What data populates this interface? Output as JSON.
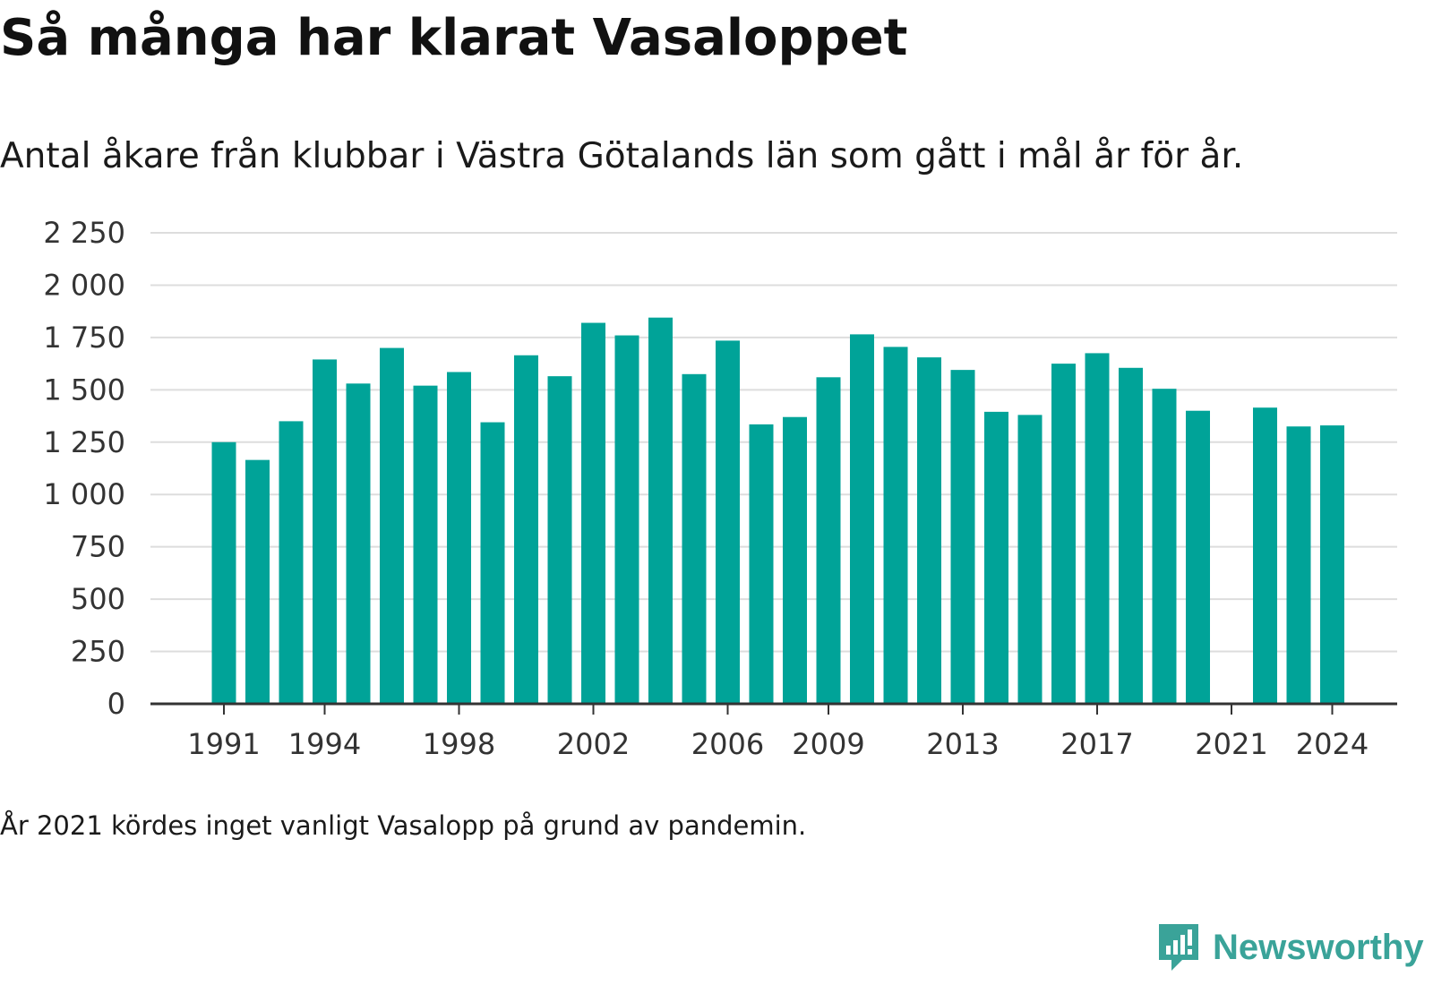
{
  "header": {
    "title": "Så många har klarat Vasaloppet",
    "subtitle": "Antal åkare från klubbar i Västra Götalands län som gått i mål år för år."
  },
  "footer": {
    "note": "År 2021 kördes inget vanligt Vasalopp på grund av pandemin.",
    "brand": "Newsworthy"
  },
  "colors": {
    "bar": "#00a398",
    "grid": "#dddddd",
    "axis": "#333333",
    "brand": "#3aa399"
  },
  "chart_data": {
    "type": "bar",
    "categories": [
      "1991",
      "1992",
      "1993",
      "1994",
      "1995",
      "1996",
      "1997",
      "1998",
      "1999",
      "2000",
      "2001",
      "2002",
      "2003",
      "2004",
      "2005",
      "2006",
      "2007",
      "2008",
      "2009",
      "2010",
      "2011",
      "2012",
      "2013",
      "2014",
      "2015",
      "2016",
      "2017",
      "2018",
      "2019",
      "2020",
      "2021",
      "2022",
      "2023",
      "2024"
    ],
    "values": [
      1250,
      1165,
      1350,
      1645,
      1530,
      1700,
      1520,
      1585,
      1345,
      1665,
      1565,
      1820,
      1760,
      1845,
      1575,
      1735,
      1335,
      1370,
      1560,
      1765,
      1705,
      1655,
      1595,
      1395,
      1380,
      1625,
      1675,
      1605,
      1505,
      1400,
      null,
      1415,
      1325,
      1330
    ],
    "x_tick_labels": [
      "1991",
      "1994",
      "1998",
      "2002",
      "2006",
      "2009",
      "2013",
      "2017",
      "2021",
      "2024"
    ],
    "y_ticks": [
      0,
      250,
      500,
      750,
      1000,
      1250,
      1500,
      1750,
      2000,
      2250
    ],
    "y_tick_labels": [
      "0",
      "250",
      "500",
      "750",
      "1 000",
      "1 250",
      "1 500",
      "1 750",
      "2 000",
      "2 250"
    ],
    "ylim": [
      0,
      2250
    ],
    "xlabel": "",
    "ylabel": "",
    "grid": true,
    "legend": "none"
  }
}
